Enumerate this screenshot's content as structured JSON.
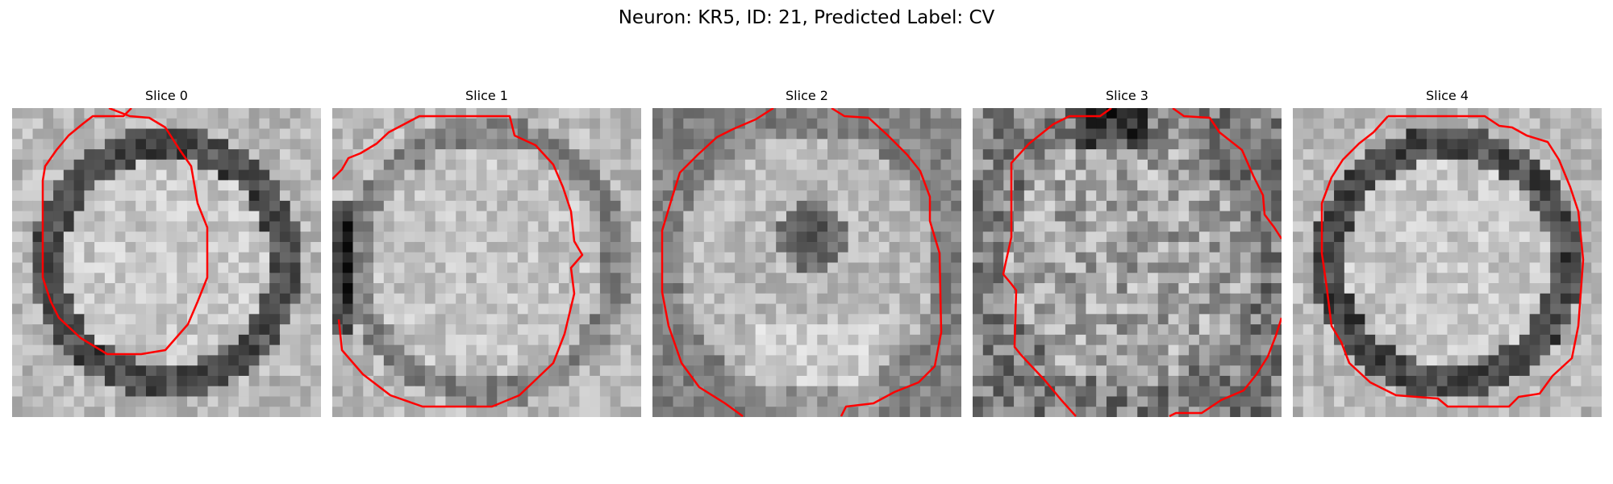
{
  "figure": {
    "title": "Neuron: KR5, ID: 21, Predicted Label: CV",
    "contour_color": "#ff0000"
  },
  "panels": [
    {
      "title": "Slice 0",
      "content": "grayscale micrograph slice with red contour",
      "pattern": "ring",
      "seed": 11
    },
    {
      "title": "Slice 1",
      "content": "grayscale micrograph slice with red contour",
      "pattern": "blob",
      "seed": 23
    },
    {
      "title": "Slice 2",
      "content": "grayscale micrograph slice with red contour",
      "pattern": "nucleus",
      "seed": 37
    },
    {
      "title": "Slice 3",
      "content": "grayscale micrograph slice with red contour",
      "pattern": "noisy",
      "seed": 41
    },
    {
      "title": "Slice 4",
      "content": "grayscale micrograph slice with red contour",
      "pattern": "ring",
      "seed": 53
    }
  ]
}
